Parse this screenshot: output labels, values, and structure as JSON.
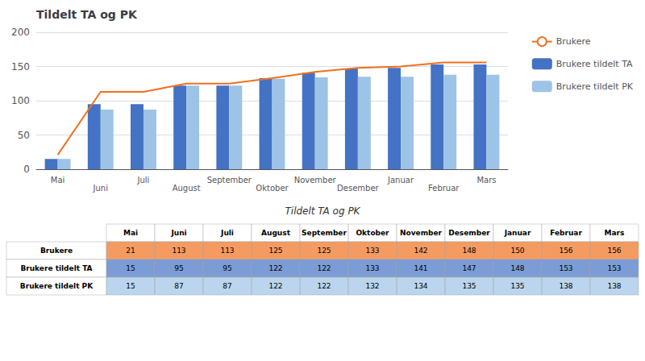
{
  "chart_data": {
    "type": "bar",
    "title": "Tildelt TA og PK",
    "table_title": "Tildelt TA og PK",
    "categories": [
      "Mai",
      "Juni",
      "Juli",
      "August",
      "September",
      "Oktober",
      "November",
      "Desember",
      "Januar",
      "Februar",
      "Mars"
    ],
    "series": [
      {
        "name": "Brukere",
        "type": "line",
        "color": "#f07020",
        "values": [
          21,
          113,
          113,
          125,
          125,
          133,
          142,
          148,
          150,
          156,
          156
        ]
      },
      {
        "name": "Brukere tildelt TA",
        "type": "bar",
        "color": "#4472C4",
        "values": [
          15,
          95,
          95,
          122,
          122,
          133,
          141,
          147,
          148,
          153,
          153
        ]
      },
      {
        "name": "Brukere tildelt PK",
        "type": "bar",
        "color": "#9DC3E6",
        "values": [
          15,
          87,
          87,
          122,
          122,
          132,
          134,
          135,
          135,
          138,
          138
        ]
      }
    ],
    "ylim": [
      0,
      200
    ],
    "yticks": [
      0,
      50,
      100,
      150,
      200
    ],
    "grid": true,
    "legend": "right"
  }
}
